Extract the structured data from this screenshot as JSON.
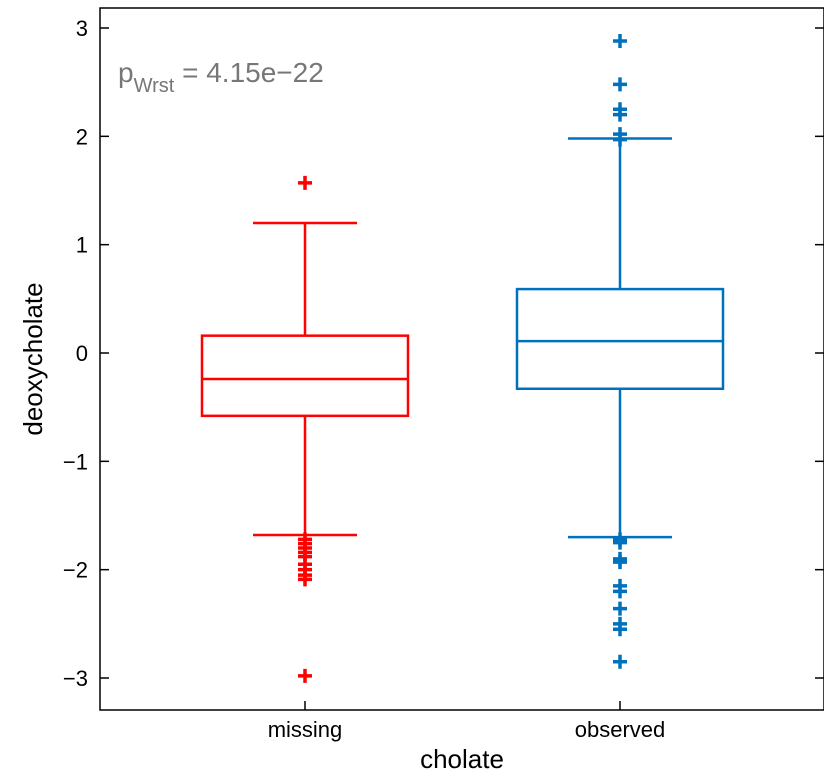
{
  "chart_data": {
    "type": "box",
    "xlabel": "cholate",
    "ylabel": "deoxycholate",
    "categories": [
      "missing",
      "observed"
    ],
    "ylim": [
      -3.3,
      3.2
    ],
    "yticks": [
      -3,
      -2,
      -1,
      0,
      1,
      2,
      3
    ],
    "ytick_labels": [
      "−3",
      "−2",
      "−1",
      "0",
      "1",
      "2",
      "3"
    ],
    "grid": false,
    "annotation": {
      "base": "p",
      "subscript": "Wrst",
      "text": " = 4.15e−22"
    },
    "series": [
      {
        "category": "missing",
        "color": "#ff0000",
        "whisker_low": -1.68,
        "q1": -0.58,
        "median": -0.24,
        "q3": 0.16,
        "whisker_high": 1.2,
        "outliers": [
          1.57,
          -1.72,
          -1.76,
          -1.8,
          -1.84,
          -1.88,
          -1.95,
          -2.0,
          -2.05,
          -2.09,
          -2.98
        ]
      },
      {
        "category": "observed",
        "color": "#0072bd",
        "whisker_low": -1.7,
        "q1": -0.33,
        "median": 0.11,
        "q3": 0.59,
        "whisker_high": 1.98,
        "outliers": [
          2.88,
          2.48,
          2.25,
          2.2,
          2.02,
          1.97,
          -1.72,
          -1.75,
          -1.9,
          -1.93,
          -2.15,
          -2.2,
          -2.36,
          -2.5,
          -2.55,
          -2.85
        ]
      }
    ]
  }
}
